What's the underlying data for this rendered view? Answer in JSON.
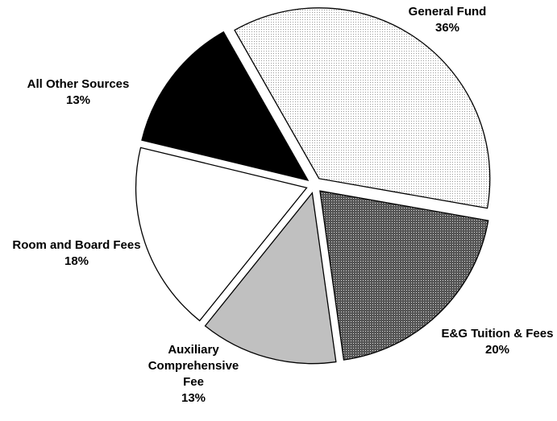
{
  "chart_data": {
    "type": "pie",
    "categories": [
      "General Fund",
      "E&G Tuition & Fees",
      "Auxiliary Comprehensive Fee",
      "Room and Board Fees",
      "All Other Sources"
    ],
    "values": [
      36,
      20,
      13,
      18,
      13
    ],
    "value_labels": [
      "36%",
      "20%",
      "13%",
      "18%",
      "13%"
    ],
    "colors": [
      "#e2e2e2",
      "#8a8a8a",
      "#c0c0c0",
      "#ffffff",
      "#000000"
    ]
  }
}
